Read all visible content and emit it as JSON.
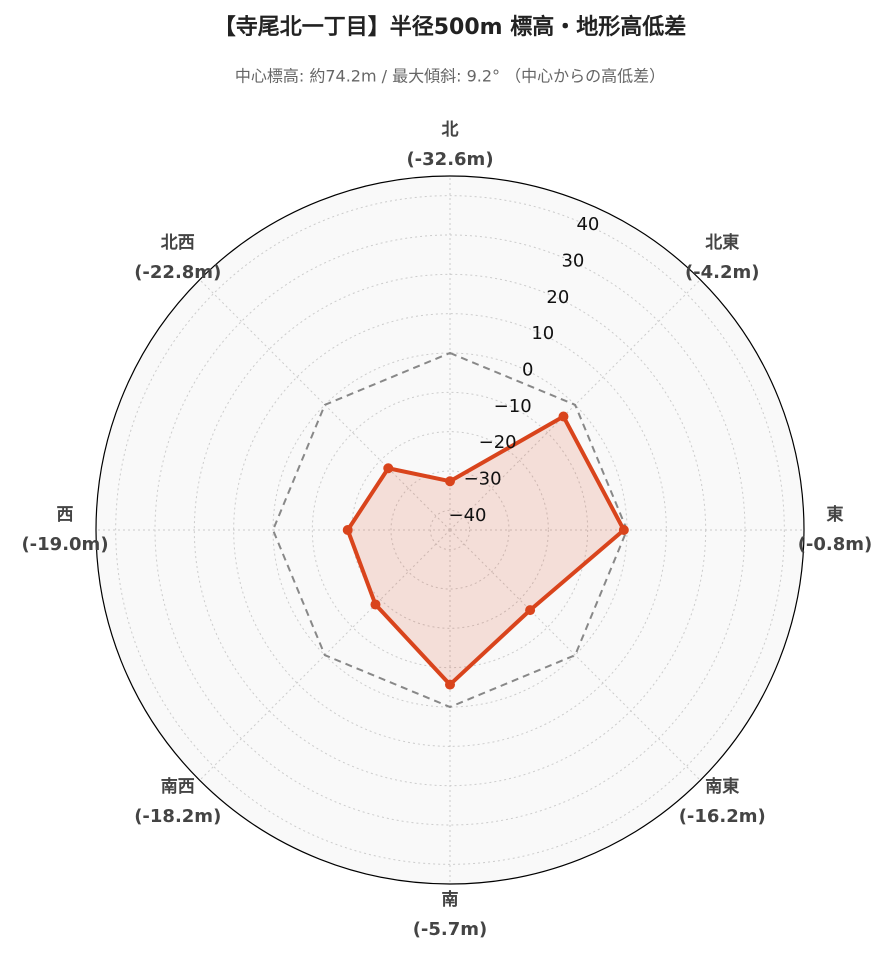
{
  "chart_data": {
    "type": "radar",
    "title": "【寺尾北一丁目】半径500m 標高・地形高低差",
    "subtitle": "中心標高: 約74.2m / 最大傾斜: 9.2° （中心からの高低差）",
    "categories": [
      "北",
      "北東",
      "東",
      "南東",
      "南",
      "南西",
      "西",
      "北西"
    ],
    "values": [
      -32.6,
      -4.2,
      -0.8,
      -16.2,
      -5.7,
      -18.2,
      -19.0,
      -22.8
    ],
    "value_labels": [
      "(-32.6m)",
      "(-4.2m)",
      "(-0.8m)",
      "(-16.2m)",
      "(-5.7m)",
      "(-18.2m)",
      "(-19.0m)",
      "(-22.8m)"
    ],
    "color": "#d9441c",
    "reference_line": 0,
    "ylim": [
      -45,
      45
    ],
    "yticks": [
      {
        "value": -40,
        "label": "−40"
      },
      {
        "value": -30,
        "label": "−30"
      },
      {
        "value": -20,
        "label": "−20"
      },
      {
        "value": -10,
        "label": "−10"
      },
      0,
      10,
      20,
      30,
      40
    ],
    "grid": true
  }
}
